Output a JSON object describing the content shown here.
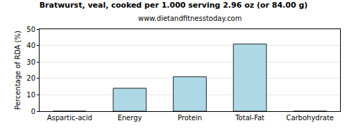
{
  "chart_data": {
    "type": "bar",
    "title": "Bratwurst, veal, cooked per 1.000 serving 2.96 oz (or 84.00 g)",
    "subtitle": "www.dietandfitnesstoday.com",
    "y_label": "Percentage of RDA (%)",
    "categories": [
      "Aspartic-acid",
      "Energy",
      "Protein",
      "Total-Fat",
      "Carbohydrate"
    ],
    "values": [
      0,
      14,
      21,
      41,
      0
    ],
    "color": "#add8e6",
    "ylim": [
      0,
      50
    ],
    "yticks": [
      0,
      10,
      20,
      30,
      40,
      50
    ],
    "grid": true
  }
}
